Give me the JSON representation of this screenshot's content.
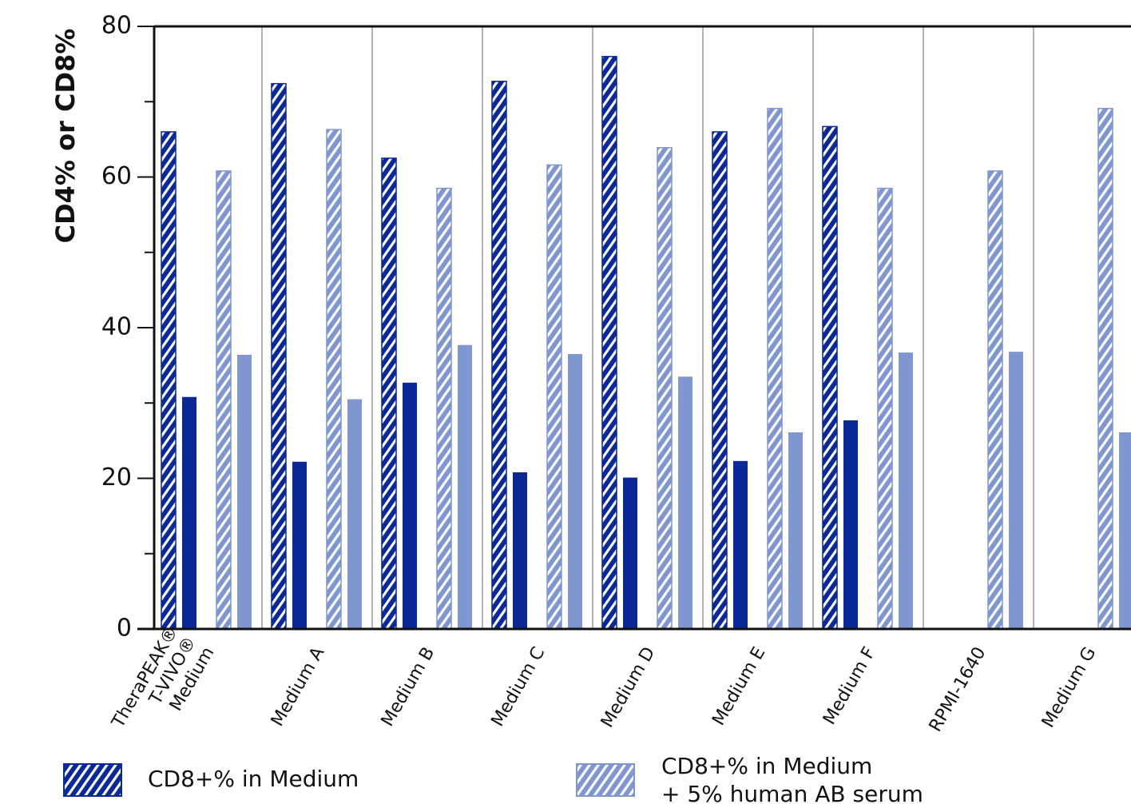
{
  "chart_data": {
    "type": "bar",
    "y_label": "CD4% or CD8%",
    "categories": [
      "TheraPEAK®\nT-VIVO®\nMedium",
      "Medium A",
      "Medium B",
      "Medium C",
      "Medium D",
      "Medium E",
      "Medium F",
      "RPMI-1640",
      "Medium G"
    ],
    "series": [
      {
        "name": "CD8+% in Medium",
        "color": "#0a2896",
        "pattern": "hatch",
        "values": [
          66.0,
          72.4,
          62.5,
          72.7,
          76.0,
          66.0,
          66.7,
          null,
          null
        ]
      },
      {
        "color": "#0a2896",
        "pattern": "solid",
        "values": [
          30.8,
          22.2,
          32.7,
          20.8,
          20.1,
          22.3,
          27.7,
          null,
          null
        ]
      },
      {
        "name": "CD8+% in Medium\n+ 5% human AB serum",
        "color": "#8096d0",
        "pattern": "hatch",
        "values": [
          60.8,
          66.3,
          58.5,
          61.6,
          63.9,
          69.1,
          58.5,
          60.8,
          69.1
        ]
      },
      {
        "color": "#8096d0",
        "pattern": "solid",
        "values": [
          36.4,
          30.5,
          37.7,
          36.5,
          33.5,
          26.1,
          36.7,
          36.8,
          26.1
        ]
      }
    ],
    "ylim": [
      0,
      80
    ],
    "yticks": [
      0,
      20,
      40,
      60,
      80
    ],
    "yminorticks": [
      10,
      30,
      50,
      70
    ],
    "group_separators": true
  }
}
